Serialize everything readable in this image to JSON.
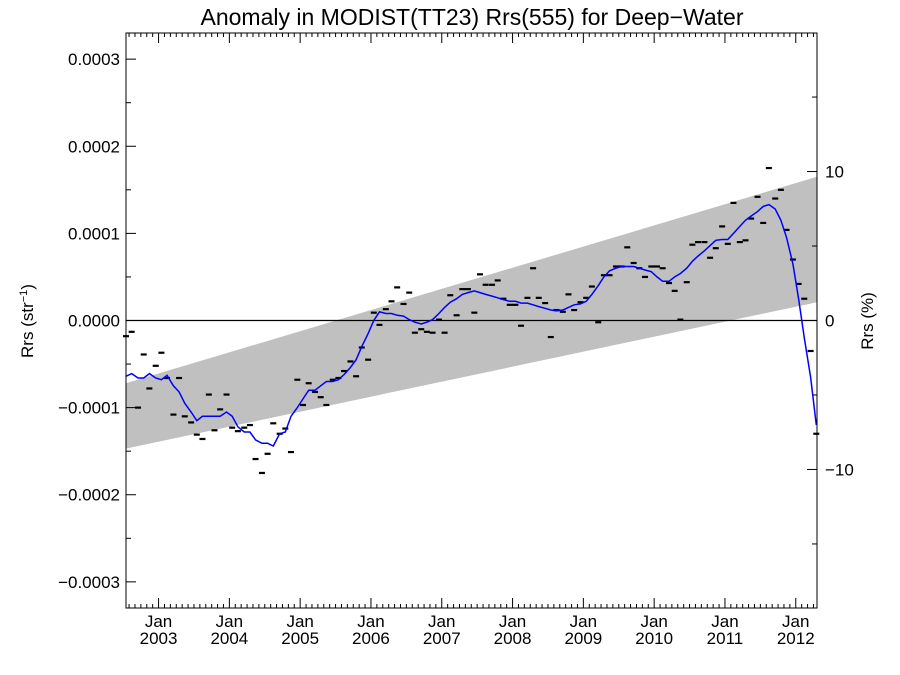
{
  "chart_data": {
    "type": "scatter",
    "title": "Anomaly in MODIST(TT23) Rrs(555) for Deep−Water",
    "ylabel_left": "Rrs (str",
    "ylabel_left_sup": "−1",
    "ylabel_left_close": ")",
    "ylabel_right": "Rrs (%)",
    "ylim_left": [
      -0.00033,
      0.00033
    ],
    "ylim_right": [
      -19.3,
      19.3
    ],
    "xlim": [
      2002.54,
      2012.3
    ],
    "left_ticks": [
      {
        "value": 0.0003,
        "label": "0.0003"
      },
      {
        "value": 0.0002,
        "label": "0.0002"
      },
      {
        "value": 0.0001,
        "label": "0.0001"
      },
      {
        "value": 0.0,
        "label": "0.0000"
      },
      {
        "value": -0.0001,
        "label": "−0.0001"
      },
      {
        "value": -0.0002,
        "label": "−0.0002"
      },
      {
        "value": -0.0003,
        "label": "−0.0003"
      }
    ],
    "right_ticks": [
      {
        "value": 10,
        "label": "10"
      },
      {
        "value": 0,
        "label": "0"
      },
      {
        "value": -10,
        "label": "−10"
      }
    ],
    "x_ticks": [
      {
        "value": 2003.0,
        "label_top": "Jan",
        "label_bottom": "2003"
      },
      {
        "value": 2004.0,
        "label_top": "Jan",
        "label_bottom": "2004"
      },
      {
        "value": 2005.0,
        "label_top": "Jan",
        "label_bottom": "2005"
      },
      {
        "value": 2006.0,
        "label_top": "Jan",
        "label_bottom": "2006"
      },
      {
        "value": 2007.0,
        "label_top": "Jan",
        "label_bottom": "2007"
      },
      {
        "value": 2008.0,
        "label_top": "Jan",
        "label_bottom": "2008"
      },
      {
        "value": 2009.0,
        "label_top": "Jan",
        "label_bottom": "2009"
      },
      {
        "value": 2010.0,
        "label_top": "Jan",
        "label_bottom": "2010"
      },
      {
        "value": 2011.0,
        "label_top": "Jan",
        "label_bottom": "2011"
      },
      {
        "value": 2012.0,
        "label_top": "Jan",
        "label_bottom": "2012"
      }
    ],
    "band": {
      "color": "#c0c0c0",
      "x": [
        2002.54,
        2012.3
      ],
      "lower": [
        -0.000147,
        2.1e-05
      ],
      "upper": [
        -7.2e-05,
        0.000165
      ]
    },
    "zero_line": 0,
    "monthly_points": {
      "color": "#000000",
      "x": [
        2002.54,
        2002.62,
        2002.71,
        2002.79,
        2002.87,
        2002.96,
        2003.04,
        2003.12,
        2003.21,
        2003.29,
        2003.37,
        2003.46,
        2003.54,
        2003.62,
        2003.71,
        2003.79,
        2003.87,
        2003.96,
        2004.04,
        2004.12,
        2004.21,
        2004.29,
        2004.37,
        2004.46,
        2004.54,
        2004.62,
        2004.71,
        2004.79,
        2004.87,
        2004.96,
        2005.04,
        2005.12,
        2005.21,
        2005.29,
        2005.37,
        2005.46,
        2005.54,
        2005.62,
        2005.71,
        2005.79,
        2005.87,
        2005.96,
        2006.04,
        2006.12,
        2006.21,
        2006.29,
        2006.37,
        2006.46,
        2006.54,
        2006.62,
        2006.71,
        2006.79,
        2006.87,
        2006.96,
        2007.04,
        2007.12,
        2007.21,
        2007.29,
        2007.37,
        2007.46,
        2007.54,
        2007.62,
        2007.71,
        2007.79,
        2007.87,
        2007.96,
        2008.04,
        2008.12,
        2008.21,
        2008.29,
        2008.37,
        2008.46,
        2008.54,
        2008.62,
        2008.71,
        2008.79,
        2008.87,
        2008.96,
        2009.04,
        2009.12,
        2009.21,
        2009.29,
        2009.37,
        2009.46,
        2009.54,
        2009.62,
        2009.71,
        2009.79,
        2009.87,
        2009.96,
        2010.04,
        2010.12,
        2010.21,
        2010.29,
        2010.37,
        2010.46,
        2010.54,
        2010.62,
        2010.71,
        2010.79,
        2010.87,
        2010.96,
        2011.04,
        2011.12,
        2011.21,
        2011.29,
        2011.37,
        2011.46,
        2011.54,
        2011.62,
        2011.71,
        2011.79,
        2011.87,
        2011.96,
        2012.04,
        2012.12,
        2012.21,
        2012.29
      ],
      "y": [
        -1.8e-05,
        -1.3e-05,
        -0.0001,
        -3.9e-05,
        -7.8e-05,
        -5.2e-05,
        -3.7e-05,
        -6.6e-05,
        -0.000108,
        -6.6e-05,
        -0.00011,
        -0.000117,
        -0.000131,
        -0.000136,
        -8.5e-05,
        -0.000126,
        -0.000102,
        -8.5e-05,
        -0.000123,
        -0.000127,
        -0.000123,
        -0.00012,
        -0.000159,
        -0.000175,
        -0.000153,
        -0.000118,
        -0.00013,
        -0.000124,
        -0.000151,
        -6.8e-05,
        -9.7e-05,
        -7.2e-05,
        -8.2e-05,
        -8.8e-05,
        -9.7e-05,
        -6.8e-05,
        -6.6e-05,
        -5.8e-05,
        -4.7e-05,
        -6.4e-05,
        -3.1e-05,
        -4.5e-05,
        9e-06,
        -5e-06,
        1.3e-05,
        2.2e-05,
        3.8e-05,
        1.9e-05,
        3.2e-05,
        -1.4e-05,
        -1e-05,
        -1.3e-05,
        -1.4e-05,
        1e-06,
        -1.4e-05,
        2.9e-05,
        6e-06,
        3.6e-05,
        3.6e-05,
        9e-06,
        5.3e-05,
        4.1e-05,
        4.1e-05,
        4.6e-05,
        2.5e-05,
        1.8e-05,
        1.8e-05,
        -6e-06,
        2.6e-05,
        6e-05,
        2.6e-05,
        2e-05,
        -1.9e-05,
        1.2e-05,
        1e-05,
        3e-05,
        1.2e-05,
        2.1e-05,
        2.6e-05,
        3.9e-05,
        -2e-06,
        5.2e-05,
        5.2e-05,
        6.2e-05,
        6.2e-05,
        8.4e-05,
        6.6e-05,
        6e-05,
        5e-05,
        6.2e-05,
        6.2e-05,
        6e-05,
        4.3e-05,
        3.4e-05,
        1e-06,
        4.4e-05,
        8.7e-05,
        9e-05,
        9e-05,
        7.2e-05,
        8.3e-05,
        0.000108,
        8.8e-05,
        0.000135,
        9e-05,
        9.2e-05,
        0.000117,
        0.000142,
        0.000112,
        0.000175,
        0.00014,
        0.00015,
        0.000104,
        7e-05,
        4.2e-05,
        2.5e-05,
        -3.5e-05,
        -0.00013
      ]
    },
    "smoothed_series": {
      "color": "#0000ff",
      "x": [
        2002.54,
        2002.62,
        2002.71,
        2002.79,
        2002.87,
        2002.96,
        2003.04,
        2003.12,
        2003.21,
        2003.29,
        2003.37,
        2003.46,
        2003.54,
        2003.62,
        2003.71,
        2003.79,
        2003.87,
        2003.96,
        2004.04,
        2004.12,
        2004.21,
        2004.29,
        2004.37,
        2004.46,
        2004.54,
        2004.62,
        2004.71,
        2004.79,
        2004.87,
        2004.96,
        2005.04,
        2005.12,
        2005.21,
        2005.29,
        2005.37,
        2005.46,
        2005.54,
        2005.62,
        2005.71,
        2005.79,
        2005.87,
        2005.96,
        2006.04,
        2006.12,
        2006.21,
        2006.29,
        2006.37,
        2006.46,
        2006.54,
        2006.62,
        2006.71,
        2006.79,
        2006.87,
        2006.96,
        2007.04,
        2007.12,
        2007.21,
        2007.29,
        2007.37,
        2007.46,
        2007.54,
        2007.62,
        2007.71,
        2007.79,
        2007.87,
        2007.96,
        2008.04,
        2008.12,
        2008.21,
        2008.29,
        2008.37,
        2008.46,
        2008.54,
        2008.62,
        2008.71,
        2008.79,
        2008.87,
        2008.96,
        2009.04,
        2009.12,
        2009.21,
        2009.29,
        2009.37,
        2009.46,
        2009.54,
        2009.62,
        2009.71,
        2009.79,
        2009.87,
        2009.96,
        2010.04,
        2010.12,
        2010.21,
        2010.29,
        2010.37,
        2010.46,
        2010.54,
        2010.62,
        2010.71,
        2010.79,
        2010.87,
        2010.96,
        2011.04,
        2011.12,
        2011.21,
        2011.29,
        2011.37,
        2011.46,
        2011.54,
        2011.62,
        2011.71,
        2011.79,
        2011.87,
        2011.96,
        2012.04,
        2012.12,
        2012.21,
        2012.29
      ],
      "y": [
        -6.4e-05,
        -6.1e-05,
        -6.6e-05,
        -6.6e-05,
        -6.1e-05,
        -6.6e-05,
        -6.8e-05,
        -6.3e-05,
        -7.5e-05,
        -8.2e-05,
        -9.5e-05,
        -0.000105,
        -0.000115,
        -0.00011,
        -0.00011,
        -0.00011,
        -0.00011,
        -0.000105,
        -0.00011,
        -0.000122,
        -0.000128,
        -0.000128,
        -0.000137,
        -0.000141,
        -0.000141,
        -0.000144,
        -0.00013,
        -0.000128,
        -0.00011,
        -0.0001,
        -9e-05,
        -8e-05,
        -8e-05,
        -7.5e-05,
        -7e-05,
        -7e-05,
        -6.8e-05,
        -6.2e-05,
        -5.4e-05,
        -4.5e-05,
        -3e-05,
        -1.5e-05,
        0.0,
        1e-05,
        8e-06,
        8e-06,
        6e-06,
        5e-06,
        1e-06,
        -2e-06,
        -4e-06,
        -2e-06,
        1e-06,
        8e-06,
        1.5e-05,
        2.1e-05,
        2.5e-05,
        3e-05,
        3.2e-05,
        3.4e-05,
        3.2e-05,
        3e-05,
        2.8e-05,
        2.6e-05,
        2.4e-05,
        2.2e-05,
        2.2e-05,
        2e-05,
        2e-05,
        1.8e-05,
        1.6e-05,
        1.4e-05,
        1.2e-05,
        1.1e-05,
        1.2e-05,
        1.5e-05,
        1.8e-05,
        1.9e-05,
        2.2e-05,
        3e-05,
        4e-05,
        5e-05,
        5.7e-05,
        6e-05,
        6.2e-05,
        6.2e-05,
        6.2e-05,
        6e-05,
        5.8e-05,
        5.6e-05,
        5e-05,
        4.5e-05,
        4.5e-05,
        5e-05,
        5.4e-05,
        6e-05,
        6.8e-05,
        7.4e-05,
        8e-05,
        8.6e-05,
        9.2e-05,
        9.3e-05,
        9.3e-05,
        0.0001,
        0.000108,
        0.000115,
        0.00012,
        0.000125,
        0.000131,
        0.000133,
        0.000128,
        0.000115,
        9.5e-05,
        6.5e-05,
        2.5e-05,
        -2e-05,
        -6.5e-05,
        -0.00012
      ]
    }
  }
}
